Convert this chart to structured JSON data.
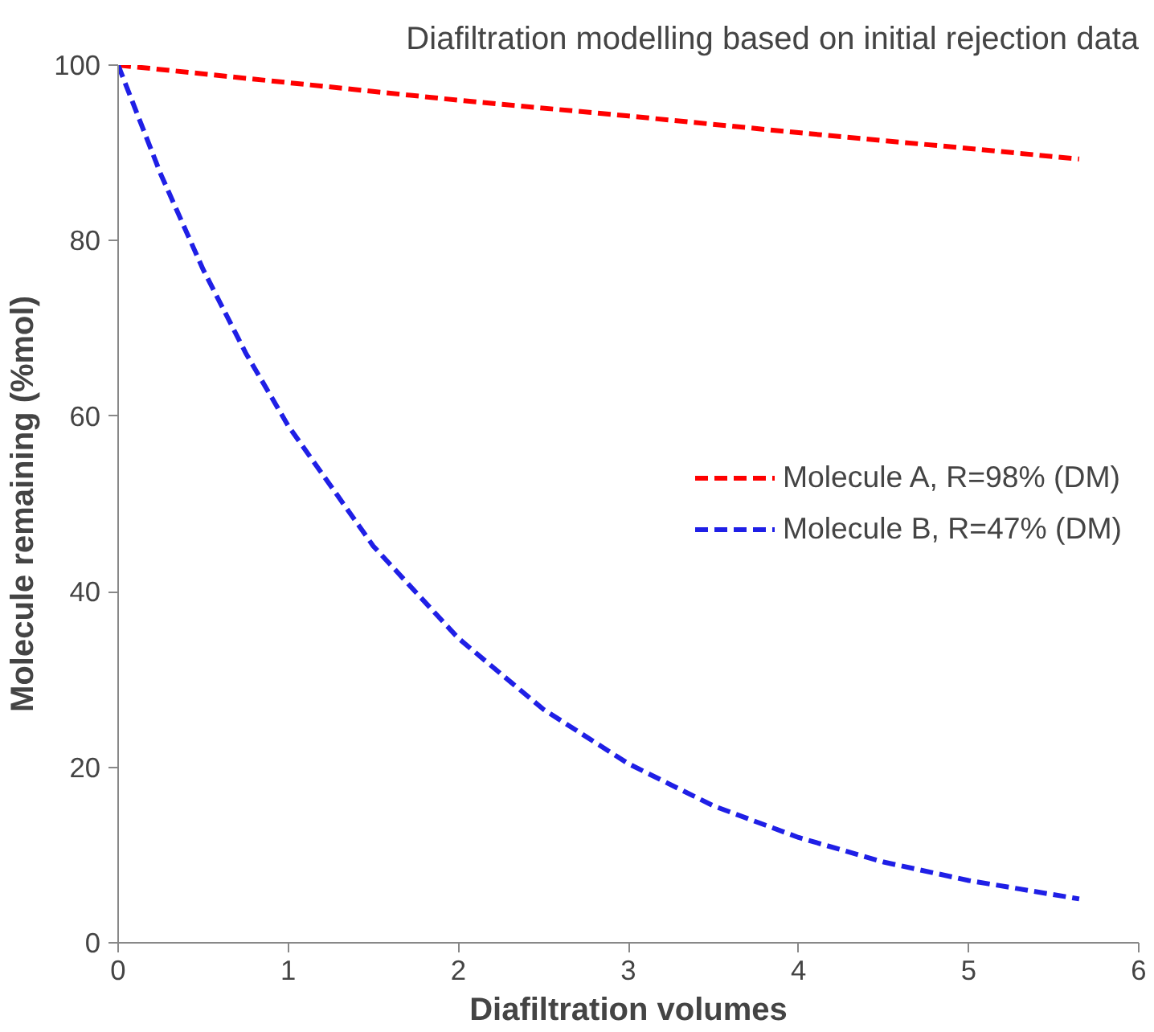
{
  "chart_data": {
    "type": "line",
    "title": "Diafiltration modelling based on initial rejection data",
    "xlabel": "Diafiltration volumes",
    "ylabel": "Molecule remaining (%mol)",
    "xlim": [
      0,
      6
    ],
    "xticks": [
      0,
      1,
      2,
      3,
      4,
      5,
      6
    ],
    "ylim": [
      0,
      100
    ],
    "yticks": [
      0,
      20,
      40,
      60,
      80,
      100
    ],
    "grid": false,
    "legend": "right",
    "line_style": "dashed",
    "marker": "none",
    "series": [
      {
        "name": "Molecule A, R=98% (DM)",
        "color": "#ff0000",
        "x": [
          0,
          1,
          2,
          3,
          4,
          5,
          5.65
        ],
        "values": [
          100,
          98,
          96,
          94.2,
          92.3,
          90.5,
          89.3
        ]
      },
      {
        "name": "Molecule B, R=47% (DM)",
        "color": "#1f1fe6",
        "x": [
          0,
          0.25,
          0.5,
          0.75,
          1,
          1.5,
          2,
          2.5,
          3,
          3.5,
          4,
          4.5,
          5,
          5.65
        ],
        "values": [
          100,
          87.6,
          76.7,
          67.2,
          58.9,
          45.2,
          34.7,
          26.6,
          20.4,
          15.6,
          12,
          9.2,
          7.1,
          5
        ]
      }
    ]
  }
}
